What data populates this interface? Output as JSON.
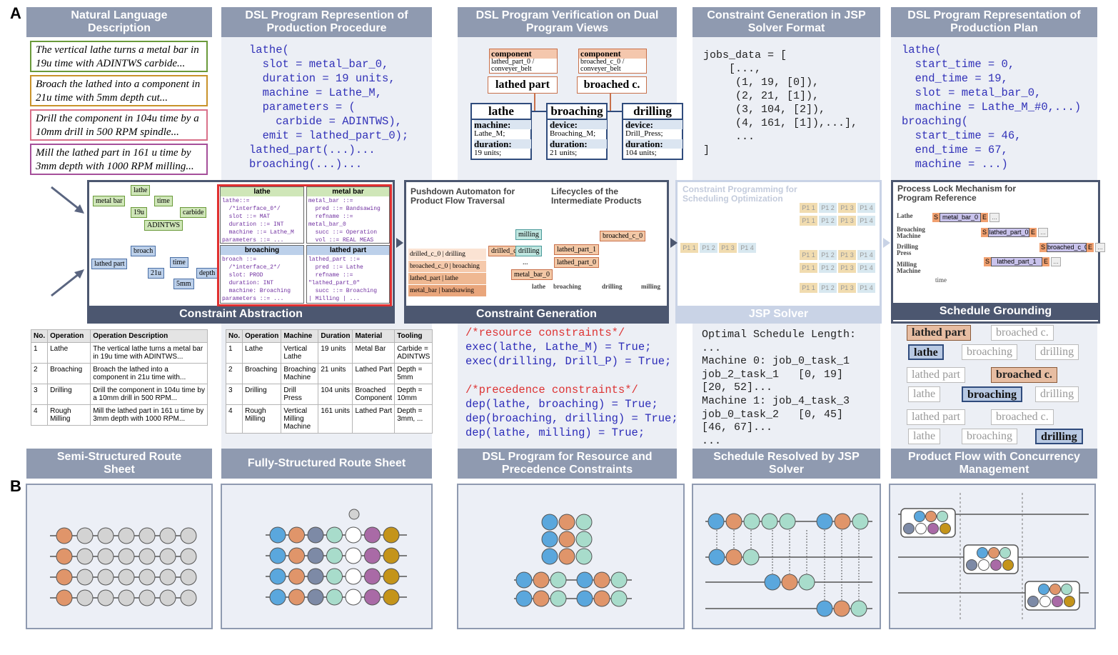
{
  "panel_labels": {
    "a": "A",
    "b": "B"
  },
  "columns": [
    {
      "header": "Natural Language Description",
      "footer": "Semi-Structured Route Sheet"
    },
    {
      "header": "DSL Program Represention of Production Procedure",
      "footer": "Fully-Structured Route Sheet"
    },
    {
      "header": "DSL Program Verification on Dual Program Views",
      "footer": "DSL Program for Resource and Precedence Constraints"
    },
    {
      "header": "Constraint Generation in JSP Solver Format",
      "footer": "Schedule Resolved by JSP Solver"
    },
    {
      "header": "DSL Program Representation of Production Plan",
      "footer": "Product Flow with Concurrency Management"
    }
  ],
  "nl_descriptions": [
    "The vertical lathe turns a metal bar in 19u time with ADINTWS carbide...",
    "Broach the lathed into a component in 21u time with 5mm depth cut...",
    "Drill the component in 104u time by a 10mm drill in 500 RPM spindle...",
    "Mill the lathed part in 161 u time by 3mm depth with 1000 RPM milling..."
  ],
  "dsl_procedure": [
    "lathe(",
    "  slot = metal_bar_0,",
    "  duration = 19 units,",
    "  machine = Lathe_M,",
    "  parameters = (",
    "    carbide = ADINTWS),",
    "  emit = lathed_part_0);",
    "lathed_part(...)...",
    "broaching(...)..."
  ],
  "verification": {
    "components": [
      {
        "label": "component",
        "text": "lathed_part_0 / conveyer_belt",
        "name": "lathed part"
      },
      {
        "label": "component",
        "text": "broached_c_0 / conveyer_belt",
        "name": "broached c."
      }
    ],
    "machines": [
      {
        "name": "lathe",
        "rows": [
          [
            "machine:",
            "Lathe_M;"
          ],
          [
            "duration:",
            "19 units;"
          ]
        ]
      },
      {
        "name": "broaching",
        "rows": [
          [
            "device:",
            "Broaching_M;"
          ],
          [
            "duration:",
            "21 units;"
          ]
        ]
      },
      {
        "name": "drilling",
        "rows": [
          [
            "device:",
            "Drill_Press;"
          ],
          [
            "duration:",
            "104 units;"
          ]
        ]
      }
    ]
  },
  "jsp_format": [
    "jobs_data = [",
    "    [...,",
    "     (1, 19, [0]),",
    "     (2, 21, [1]),",
    "     (3, 104, [2]),",
    "     (4, 161, [1]),...],",
    "     ...",
    "]"
  ],
  "plan": [
    "lathe(",
    "  start_time = 0,",
    "  end_time = 19,",
    "  slot = metal_bar_0,",
    "  machine = Lathe_M_#0,...)",
    "broaching(",
    "  start_time = 46,",
    "  end_time = 67,",
    "  machine = ...)"
  ],
  "abstraction": {
    "title": "Constraint Abstraction",
    "product_tree": [
      "lathe",
      "metal bar",
      "time",
      "19u",
      "carbide",
      "ADINTWS"
    ],
    "broach_tree": [
      "broach",
      "lathed part",
      "time",
      "21u",
      "depth",
      "5mm"
    ],
    "code_boxes": [
      {
        "title": "lathe",
        "lines": [
          "lathe::=",
          "  /*interface_0*/",
          "  slot ::= MAT",
          "  duration ::= INT",
          "  machine ::= Lathe_M",
          "parameters ::= ..."
        ]
      },
      {
        "title": "metal bar",
        "lines": [
          "metal_bar ::=",
          "  pred ::= Bandsawing",
          "  refname ::=",
          "metal_bar_0",
          "  succ ::= Operation",
          "  vol ::= REAL MEAS"
        ]
      },
      {
        "title": "broaching",
        "lines": [
          "broach ::=",
          "  /*interface_2*/",
          "  slot: PROD",
          "  duration: INT",
          "  machine: Broaching",
          "parameters ::= ..."
        ]
      },
      {
        "title": "lathed part",
        "lines": [
          "lathed_part ::=",
          "  pred ::= Lathe",
          "  refname ::=",
          "\"lathed_part_0\"",
          "  succ ::= Broaching",
          "| Milling | ..."
        ]
      }
    ]
  },
  "generation": {
    "title": "Constraint Generation",
    "subtitle_left": "Pushdown Automaton for Product Flow Traversal",
    "subtitle_right": "Lifecycles of the Intermediate Products",
    "stack": [
      "drilled_c_0 | drilling",
      "broached_c_0 | broaching",
      "lathed_part | lathe",
      "metal_bar | bandsawing"
    ],
    "nodes": [
      "milling",
      "drilled_c",
      "drilling",
      "..."
    ],
    "lifecycles": [
      "broached_c_0",
      "lathed_part_1",
      "lathed_part_0",
      "metal_bar_0"
    ],
    "axis": [
      "lathe",
      "broaching",
      "drilling",
      "milling"
    ]
  },
  "jsp_solver": {
    "title": "JSP Solver",
    "subtitle": "Constraint Programming for Scheduling Optimization",
    "ops": [
      "P1 1",
      "P1 2",
      "P1 3",
      "P1 4"
    ]
  },
  "grounding": {
    "title": "Schedule Grounding",
    "subtitle": "Process Lock Mechanism for Program Reference",
    "machines": [
      "Lathe",
      "Broaching Machine",
      "Drilling Press",
      "Milling Machine"
    ],
    "bars": [
      "metal_bar_0",
      "lathed_part_0",
      "broached_c_0",
      "lathed_part_1"
    ],
    "start": "S",
    "end": "E",
    "more": "...",
    "time": "time"
  },
  "semi_table": {
    "header": [
      "No.",
      "Operation",
      "Operation Description"
    ],
    "rows": [
      [
        "1",
        "Lathe",
        "The vertical lathe turns a metal bar in 19u time with ADINTWS..."
      ],
      [
        "2",
        "Broaching",
        "Broach the lathed into a component in 21u time with..."
      ],
      [
        "3",
        "Drilling",
        "Drill the component in 104u time by a 10mm drill in 500 RPM..."
      ],
      [
        "4",
        "Rough Milling",
        "Mill the lathed part in 161 u time by 3mm depth with 1000 RPM..."
      ]
    ]
  },
  "full_table": {
    "header": [
      "No.",
      "Operation",
      "Machine",
      "Duration",
      "Material",
      "Tooling"
    ],
    "rows": [
      [
        "1",
        "Lathe",
        "Vertical Lathe",
        "19 units",
        "Metal Bar",
        "Carbide = ADINTWS"
      ],
      [
        "2",
        "Broaching",
        "Broaching Machine",
        "21 units",
        "Lathed Part",
        "Depth = 5mm"
      ],
      [
        "3",
        "Drilling",
        "Drill Press",
        "104 units",
        "Broached Component",
        "Depth = 10mm"
      ],
      [
        "4",
        "Rough Milling",
        "Vertical Milling Machine",
        "161 units",
        "Lathed Part",
        "Depth = 3mm, ..."
      ]
    ]
  },
  "constraints": {
    "resource": [
      "/*resource constraints*/",
      "exec(lathe, Lathe_M) = True;",
      "exec(drilling, Drill_P) = True;"
    ],
    "precedence": [
      "/*precedence constraints*/",
      "dep(lathe, broaching) = True;",
      "dep(broaching, drilling) = True;",
      "dep(lathe, milling) = True;"
    ]
  },
  "schedule": [
    "Optimal Schedule Length:",
    "...",
    "Machine 0: job_0_task_1",
    "job_2_task_1   [0, 19]",
    "[20, 52]...",
    "Machine 1: job_4_task_3",
    "job_0_task_2   [0, 45]",
    "[46, 67]...",
    "..."
  ],
  "product_flow": {
    "products": [
      "lathed part",
      "broached c."
    ],
    "steps": [
      "lathe",
      "broaching",
      "drilling"
    ]
  }
}
